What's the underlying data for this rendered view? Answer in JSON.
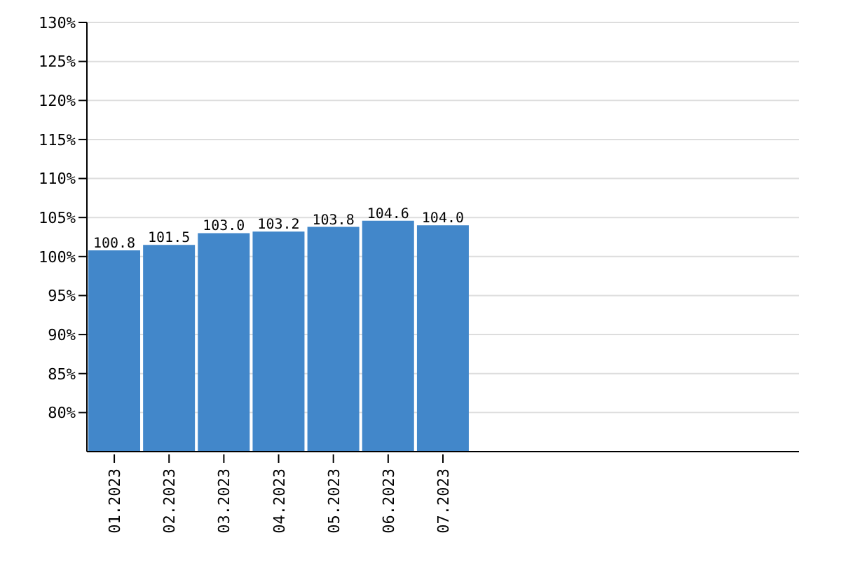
{
  "chart_data": {
    "type": "bar",
    "categories": [
      "01.2023",
      "02.2023",
      "03.2023",
      "04.2023",
      "05.2023",
      "06.2023",
      "07.2023",
      null,
      null,
      null,
      null,
      null,
      null
    ],
    "values": [
      100.8,
      101.5,
      103.0,
      103.2,
      103.8,
      104.6,
      104.0,
      null,
      null,
      null,
      null,
      null,
      null
    ],
    "color": "#4287ca",
    "ylim": [
      75,
      130
    ],
    "yticks": [
      {
        "value": 80,
        "label": "80%"
      },
      {
        "value": 85,
        "label": "85%"
      },
      {
        "value": 90,
        "label": "90%"
      },
      {
        "value": 95,
        "label": "95%"
      },
      {
        "value": 100,
        "label": "100%"
      },
      {
        "value": 105,
        "label": "105%"
      },
      {
        "value": 110,
        "label": "110%"
      },
      {
        "value": 115,
        "label": "115%"
      },
      {
        "value": 120,
        "label": "120%"
      },
      {
        "value": 125,
        "label": "125%"
      },
      {
        "value": 130,
        "label": "130%"
      }
    ],
    "value_labels": [
      "100.8",
      "101.5",
      "103.0",
      "103.2",
      "103.8",
      "104.6",
      "104.0",
      null,
      null,
      null,
      null,
      null,
      null
    ],
    "grid": "y"
  }
}
